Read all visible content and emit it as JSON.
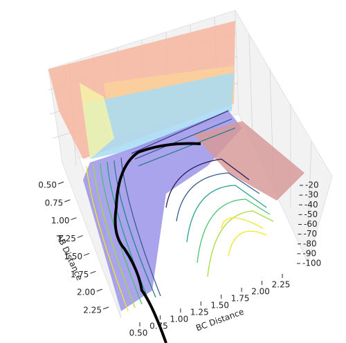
{
  "chart_data": {
    "type": "surface3d",
    "x_label": "AB Distance",
    "y_label": "BC Distance",
    "xlim": [
      0.5,
      2.25
    ],
    "ylim": [
      0.5,
      2.25
    ],
    "zlim": [
      -100,
      -20
    ],
    "xticks": [
      {
        "value": 0.5,
        "label": "0.50"
      },
      {
        "value": 0.75,
        "label": "0.75"
      },
      {
        "value": 1.0,
        "label": "1.00"
      },
      {
        "value": 1.25,
        "label": "1.25"
      },
      {
        "value": 1.5,
        "label": "1.50"
      },
      {
        "value": 1.75,
        "label": "1.75"
      },
      {
        "value": 2.0,
        "label": "2.00"
      },
      {
        "value": 2.25,
        "label": "2.25"
      }
    ],
    "yticks": [
      {
        "value": 0.5,
        "label": "0.50"
      },
      {
        "value": 0.75,
        "label": "0.75"
      },
      {
        "value": 1.0,
        "label": "1.00"
      },
      {
        "value": 1.25,
        "label": "1.25"
      },
      {
        "value": 1.5,
        "label": "1.50"
      },
      {
        "value": 1.75,
        "label": "1.75"
      },
      {
        "value": 2.0,
        "label": "2.00"
      },
      {
        "value": 2.25,
        "label": "2.25"
      }
    ],
    "zticks": [
      -20,
      -30,
      -40,
      -50,
      -60,
      -70,
      -80,
      -90,
      -100
    ]
  }
}
